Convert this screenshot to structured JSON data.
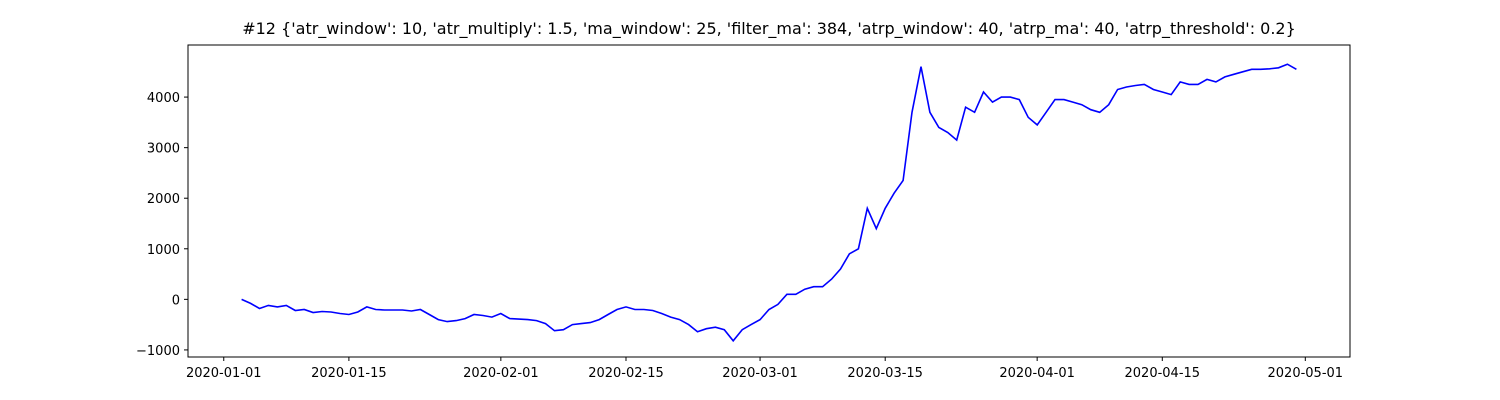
{
  "chart_data": {
    "type": "line",
    "title": "#12 {'atr_window': 10, 'atr_multiply': 1.5, 'ma_window': 25, 'filter_ma': 384, 'atrp_window': 40, 'atrp_ma': 40, 'atrp_threshold': 0.2}",
    "x": [
      "2020-01-03",
      "2020-01-04",
      "2020-01-05",
      "2020-01-06",
      "2020-01-07",
      "2020-01-08",
      "2020-01-09",
      "2020-01-10",
      "2020-01-11",
      "2020-01-12",
      "2020-01-13",
      "2020-01-14",
      "2020-01-15",
      "2020-01-16",
      "2020-01-17",
      "2020-01-18",
      "2020-01-19",
      "2020-01-20",
      "2020-01-21",
      "2020-01-22",
      "2020-01-23",
      "2020-01-24",
      "2020-01-25",
      "2020-01-26",
      "2020-01-27",
      "2020-01-28",
      "2020-01-29",
      "2020-01-30",
      "2020-01-31",
      "2020-02-01",
      "2020-02-02",
      "2020-02-03",
      "2020-02-04",
      "2020-02-05",
      "2020-02-06",
      "2020-02-07",
      "2020-02-08",
      "2020-02-09",
      "2020-02-10",
      "2020-02-11",
      "2020-02-12",
      "2020-02-13",
      "2020-02-14",
      "2020-02-15",
      "2020-02-16",
      "2020-02-17",
      "2020-02-18",
      "2020-02-19",
      "2020-02-20",
      "2020-02-21",
      "2020-02-22",
      "2020-02-23",
      "2020-02-24",
      "2020-02-25",
      "2020-02-26",
      "2020-02-27",
      "2020-02-28",
      "2020-02-29",
      "2020-03-01",
      "2020-03-02",
      "2020-03-03",
      "2020-03-04",
      "2020-03-05",
      "2020-03-06",
      "2020-03-07",
      "2020-03-08",
      "2020-03-09",
      "2020-03-10",
      "2020-03-11",
      "2020-03-12",
      "2020-03-13",
      "2020-03-14",
      "2020-03-15",
      "2020-03-16",
      "2020-03-17",
      "2020-03-18",
      "2020-03-19",
      "2020-03-20",
      "2020-03-21",
      "2020-03-22",
      "2020-03-23",
      "2020-03-24",
      "2020-03-25",
      "2020-03-26",
      "2020-03-27",
      "2020-03-28",
      "2020-03-29",
      "2020-03-30",
      "2020-03-31",
      "2020-04-01",
      "2020-04-02",
      "2020-04-03",
      "2020-04-04",
      "2020-04-05",
      "2020-04-06",
      "2020-04-07",
      "2020-04-08",
      "2020-04-09",
      "2020-04-10",
      "2020-04-11",
      "2020-04-12",
      "2020-04-13",
      "2020-04-14",
      "2020-04-15",
      "2020-04-16",
      "2020-04-17",
      "2020-04-18",
      "2020-04-19",
      "2020-04-20",
      "2020-04-21",
      "2020-04-22",
      "2020-04-23",
      "2020-04-24",
      "2020-04-25",
      "2020-04-26",
      "2020-04-27",
      "2020-04-28",
      "2020-04-29",
      "2020-04-30"
    ],
    "series": [
      {
        "color": "#0000ff",
        "values": [
          0,
          -80,
          -180,
          -120,
          -150,
          -120,
          -220,
          -200,
          -260,
          -240,
          -250,
          -280,
          -300,
          -250,
          -150,
          -200,
          -210,
          -210,
          -210,
          -230,
          -200,
          -300,
          -400,
          -440,
          -420,
          -380,
          -300,
          -320,
          -350,
          -280,
          -380,
          -390,
          -400,
          -420,
          -480,
          -620,
          -600,
          -500,
          -480,
          -460,
          -400,
          -300,
          -200,
          -150,
          -200,
          -200,
          -220,
          -280,
          -350,
          -400,
          -500,
          -640,
          -580,
          -550,
          -600,
          -820,
          -600,
          -500,
          -400,
          -200,
          -100,
          100,
          100,
          200,
          250,
          250,
          400,
          600,
          900,
          1000,
          1800,
          1400,
          1800,
          2100,
          2350,
          3700,
          4600,
          3700,
          3400,
          3300,
          3150,
          3800,
          3700,
          4100,
          3900,
          4000,
          4000,
          3950,
          3600,
          3450,
          3700,
          3950,
          3950,
          3900,
          3850,
          3750,
          3700,
          3850,
          4150,
          4200,
          4230,
          4250,
          4150,
          4100,
          4050,
          4300,
          4250,
          4250,
          4350,
          4300,
          4400,
          4450,
          4500,
          4550,
          4550,
          4560,
          4580,
          4650,
          4550
        ]
      }
    ],
    "xlim": [
      "2019-12-28",
      "2020-05-06"
    ],
    "xticks": [
      "2020-01-01",
      "2020-01-15",
      "2020-02-01",
      "2020-02-15",
      "2020-03-01",
      "2020-03-15",
      "2020-04-01",
      "2020-04-15",
      "2020-05-01"
    ],
    "ylim": [
      -1140,
      5030
    ],
    "yticks": [
      {
        "value": -1000,
        "label": "−1000"
      },
      0,
      1000,
      2000,
      3000,
      4000
    ]
  }
}
